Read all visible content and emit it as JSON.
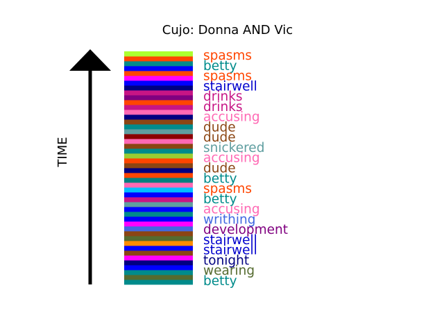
{
  "chart_data": {
    "type": "bar",
    "title": "Cujo: Donna AND Vic",
    "ylabel": "TIME",
    "orientation": "stacked-vertical timeline (later at top)",
    "bands": [
      {
        "color": "#008b8b"
      },
      {
        "color": "#556b2f"
      },
      {
        "color": "#008b8b"
      },
      {
        "color": "#0000ff"
      },
      {
        "color": "#000080"
      },
      {
        "color": "#ff00ff"
      },
      {
        "color": "#8b4513"
      },
      {
        "color": "#0000ff"
      },
      {
        "color": "#ff8c00"
      },
      {
        "color": "#556b2f"
      },
      {
        "color": "#8b4513"
      },
      {
        "color": "#4169e1"
      },
      {
        "color": "#ff00ff"
      },
      {
        "color": "#0000ff"
      },
      {
        "color": "#008b8b"
      },
      {
        "color": "#0000ff"
      },
      {
        "color": "#5f9ea0"
      },
      {
        "color": "#c71585"
      },
      {
        "color": "#0000ff"
      },
      {
        "color": "#00bfff"
      },
      {
        "color": "#ff69b4"
      },
      {
        "color": "#008080"
      },
      {
        "color": "#ff4500"
      },
      {
        "color": "#000080"
      },
      {
        "color": "#8b4513"
      },
      {
        "color": "#ff4500"
      },
      {
        "color": "#9acd32"
      },
      {
        "color": "#008b8b"
      },
      {
        "color": "#8b4513"
      },
      {
        "color": "#ff69b4"
      },
      {
        "color": "#8b0000"
      },
      {
        "color": "#5f9ea0"
      },
      {
        "color": "#008b8b"
      },
      {
        "color": "#8b4513"
      },
      {
        "color": "#000080"
      },
      {
        "color": "#ff69b4"
      },
      {
        "color": "#c71585"
      },
      {
        "color": "#ff4500"
      },
      {
        "color": "#800080"
      },
      {
        "color": "#c71585"
      },
      {
        "color": "#000080"
      },
      {
        "color": "#0000ff"
      },
      {
        "color": "#ff00ff"
      },
      {
        "color": "#ff4500"
      },
      {
        "color": "#0000ff"
      },
      {
        "color": "#008b8b"
      },
      {
        "color": "#ff4500"
      },
      {
        "color": "#adff2f"
      }
    ],
    "labels": [
      {
        "text": "spasms",
        "color": "#ff4500"
      },
      {
        "text": "betty",
        "color": "#008b8b"
      },
      {
        "text": "spasms",
        "color": "#ff4500"
      },
      {
        "text": "stairwell",
        "color": "#0000cd"
      },
      {
        "text": "drinks",
        "color": "#c71585"
      },
      {
        "text": "drinks",
        "color": "#c71585"
      },
      {
        "text": "accusing",
        "color": "#ff69b4"
      },
      {
        "text": "dude",
        "color": "#8b4513"
      },
      {
        "text": "dude",
        "color": "#8b4513"
      },
      {
        "text": "snickered",
        "color": "#5f9ea0"
      },
      {
        "text": "accusing",
        "color": "#ff69b4"
      },
      {
        "text": "dude",
        "color": "#8b4513"
      },
      {
        "text": "betty",
        "color": "#008b8b"
      },
      {
        "text": "spasms",
        "color": "#ff4500"
      },
      {
        "text": "betty",
        "color": "#008b8b"
      },
      {
        "text": "accusing",
        "color": "#ff69b4"
      },
      {
        "text": "writhing",
        "color": "#4169e1"
      },
      {
        "text": "development",
        "color": "#800080"
      },
      {
        "text": "stairwell",
        "color": "#0000cd"
      },
      {
        "text": "stairwell",
        "color": "#0000cd"
      },
      {
        "text": "tonight",
        "color": "#000080"
      },
      {
        "text": "wearing",
        "color": "#556b2f"
      },
      {
        "text": "betty",
        "color": "#008b8b"
      }
    ]
  }
}
